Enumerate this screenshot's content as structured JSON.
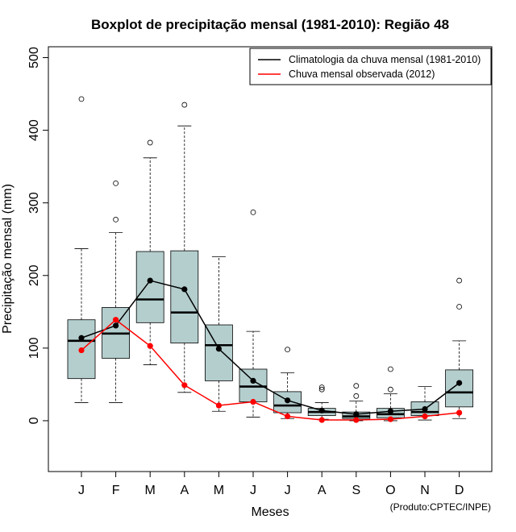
{
  "chart_data": {
    "type": "boxplot",
    "title": "Boxplot de precipitação mensal (1981-2010): Região 48",
    "xlabel": "Meses",
    "ylabel": "Precipitação mensal (mm)",
    "ylim": [
      -70,
      515
    ],
    "yticks": [
      0,
      100,
      200,
      300,
      400,
      500
    ],
    "categories": [
      "J",
      "F",
      "M",
      "A",
      "M",
      "J",
      "J",
      "A",
      "S",
      "O",
      "N",
      "D"
    ],
    "box_color": "#b4cece",
    "boxes": [
      {
        "month": "J",
        "whisker_low": 25,
        "q1": 58,
        "median": 110,
        "q3": 139,
        "whisker_high": 237,
        "outliers": [
          443
        ]
      },
      {
        "month": "F",
        "whisker_low": 25,
        "q1": 86,
        "median": 120,
        "q3": 156,
        "whisker_high": 259,
        "outliers": [
          277,
          327
        ]
      },
      {
        "month": "M",
        "whisker_low": 77,
        "q1": 135,
        "median": 167,
        "q3": 233,
        "whisker_high": 362,
        "outliers": [
          383
        ]
      },
      {
        "month": "A",
        "whisker_low": 39,
        "q1": 107,
        "median": 149,
        "q3": 234,
        "whisker_high": 406,
        "outliers": [
          435
        ]
      },
      {
        "month": "M",
        "whisker_low": 13,
        "q1": 55,
        "median": 104,
        "q3": 132,
        "whisker_high": 226,
        "outliers": []
      },
      {
        "month": "J",
        "whisker_low": 5,
        "q1": 26,
        "median": 47,
        "q3": 71,
        "whisker_high": 123,
        "outliers": [
          287
        ]
      },
      {
        "month": "J",
        "whisker_low": 3,
        "q1": 11,
        "median": 21,
        "q3": 40,
        "whisker_high": 66,
        "outliers": [
          98
        ]
      },
      {
        "month": "A",
        "whisker_low": 2,
        "q1": 7,
        "median": 12,
        "q3": 17,
        "whisker_high": 25,
        "outliers": [
          43,
          46
        ]
      },
      {
        "month": "S",
        "whisker_low": 0,
        "q1": 3,
        "median": 6,
        "q3": 12,
        "whisker_high": 27,
        "outliers": [
          34,
          48
        ]
      },
      {
        "month": "O",
        "whisker_low": 0,
        "q1": 4,
        "median": 9,
        "q3": 17,
        "whisker_high": 37,
        "outliers": [
          43,
          71
        ]
      },
      {
        "month": "N",
        "whisker_low": 1,
        "q1": 7,
        "median": 12,
        "q3": 26,
        "whisker_high": 47,
        "outliers": []
      },
      {
        "month": "D",
        "whisker_low": 3,
        "q1": 19,
        "median": 39,
        "q3": 70,
        "whisker_high": 110,
        "outliers": [
          157,
          193
        ]
      }
    ],
    "series": [
      {
        "name": "Climatologia da chuva mensal (1981-2010)",
        "color": "#000000",
        "values": [
          114,
          131,
          193,
          181,
          99,
          55,
          28,
          14,
          9,
          13,
          16,
          52
        ]
      },
      {
        "name": "Chuva mensal observada (2012)",
        "color": "#ff0000",
        "values": [
          97,
          139,
          103,
          49,
          21,
          26,
          6,
          1,
          1,
          2,
          6,
          11
        ]
      }
    ],
    "legend_position": "top-right",
    "credit": "(Produto:CPTEC/INPE)"
  }
}
